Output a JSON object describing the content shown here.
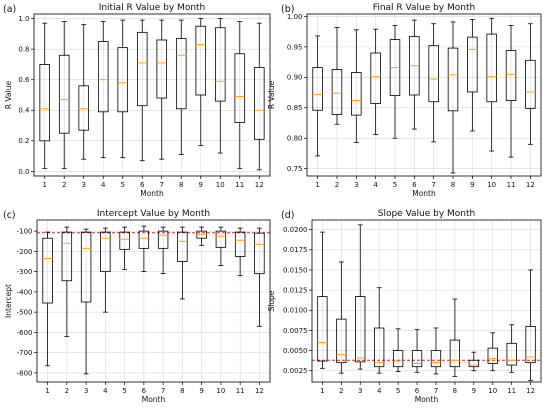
{
  "chart_data": [
    {
      "type": "box",
      "panel_label": "(a)",
      "title": "Initial R Value by Month",
      "xlabel": "Month",
      "ylabel": "R Value",
      "ylim": [
        -0.03,
        1.03
      ],
      "yticks": [
        "0.0",
        "0.2",
        "0.4",
        "0.6",
        "0.8",
        "1.0"
      ],
      "ytick_values": [
        0,
        0.2,
        0.4,
        0.6,
        0.8,
        1.0
      ],
      "categories": [
        "1",
        "2",
        "3",
        "4",
        "5",
        "6",
        "7",
        "8",
        "9",
        "10",
        "11",
        "12"
      ],
      "grid": true,
      "colors": {
        "box": "#000000",
        "median": "#ffa500",
        "grid": "#d9d9d9"
      },
      "boxes": [
        {
          "min": 0.02,
          "q1": 0.2,
          "median": 0.41,
          "q3": 0.7,
          "max": 0.97
        },
        {
          "min": 0.02,
          "q1": 0.25,
          "median": 0.47,
          "q3": 0.76,
          "max": 0.98
        },
        {
          "min": 0.08,
          "q1": 0.27,
          "median": 0.41,
          "q3": 0.56,
          "max": 0.96
        },
        {
          "min": 0.09,
          "q1": 0.39,
          "median": 0.6,
          "q3": 0.85,
          "max": 0.98
        },
        {
          "min": 0.09,
          "q1": 0.39,
          "median": 0.58,
          "q3": 0.81,
          "max": 0.99
        },
        {
          "min": 0.07,
          "q1": 0.43,
          "median": 0.71,
          "q3": 0.91,
          "max": 0.99
        },
        {
          "min": 0.08,
          "q1": 0.48,
          "median": 0.71,
          "q3": 0.86,
          "max": 0.99
        },
        {
          "min": 0.11,
          "q1": 0.41,
          "median": 0.76,
          "q3": 0.87,
          "max": 0.99
        },
        {
          "min": 0.17,
          "q1": 0.5,
          "median": 0.83,
          "q3": 0.95,
          "max": 1.0
        },
        {
          "min": 0.12,
          "q1": 0.46,
          "median": 0.59,
          "q3": 0.94,
          "max": 1.0
        },
        {
          "min": 0.02,
          "q1": 0.32,
          "median": 0.49,
          "q3": 0.77,
          "max": 0.98
        },
        {
          "min": 0.01,
          "q1": 0.21,
          "median": 0.4,
          "q3": 0.68,
          "max": 0.97
        }
      ],
      "hline": null
    },
    {
      "type": "box",
      "panel_label": "(b)",
      "title": "Final R Value by Month",
      "xlabel": "Month",
      "ylabel": "R Value",
      "ylim": [
        0.738,
        1.004
      ],
      "yticks": [
        "0.75",
        "0.80",
        "0.85",
        "0.90",
        "0.95",
        "1.00"
      ],
      "ytick_values": [
        0.75,
        0.8,
        0.85,
        0.9,
        0.95,
        1.0
      ],
      "categories": [
        "1",
        "2",
        "3",
        "4",
        "5",
        "6",
        "7",
        "8",
        "9",
        "10",
        "11",
        "12"
      ],
      "grid": true,
      "colors": {
        "box": "#000000",
        "median": "#ffa500",
        "grid": "#d9d9d9"
      },
      "boxes": [
        {
          "min": 0.771,
          "q1": 0.846,
          "median": 0.872,
          "q3": 0.916,
          "max": 0.968
        },
        {
          "min": 0.823,
          "q1": 0.839,
          "median": 0.874,
          "q3": 0.913,
          "max": 0.982
        },
        {
          "min": 0.793,
          "q1": 0.838,
          "median": 0.862,
          "q3": 0.908,
          "max": 0.978
        },
        {
          "min": 0.806,
          "q1": 0.857,
          "median": 0.901,
          "q3": 0.94,
          "max": 0.979
        },
        {
          "min": 0.8,
          "q1": 0.87,
          "median": 0.916,
          "q3": 0.962,
          "max": 0.985
        },
        {
          "min": 0.815,
          "q1": 0.871,
          "median": 0.919,
          "q3": 0.967,
          "max": 0.994
        },
        {
          "min": 0.794,
          "q1": 0.86,
          "median": 0.897,
          "q3": 0.952,
          "max": 0.988
        },
        {
          "min": 0.743,
          "q1": 0.845,
          "median": 0.904,
          "q3": 0.948,
          "max": 0.991
        },
        {
          "min": 0.812,
          "q1": 0.876,
          "median": 0.946,
          "q3": 0.966,
          "max": 0.995
        },
        {
          "min": 0.779,
          "q1": 0.86,
          "median": 0.901,
          "q3": 0.971,
          "max": 0.997
        },
        {
          "min": 0.769,
          "q1": 0.862,
          "median": 0.905,
          "q3": 0.944,
          "max": 0.985
        },
        {
          "min": 0.79,
          "q1": 0.849,
          "median": 0.876,
          "q3": 0.928,
          "max": 0.988
        }
      ],
      "hline": null
    },
    {
      "type": "box",
      "panel_label": "(c)",
      "title": "Intercept Value by Month",
      "xlabel": "Month",
      "ylabel": "Intercept",
      "ylim": [
        -845,
        -45
      ],
      "yticks": [
        "-800",
        "-700",
        "-600",
        "-500",
        "-400",
        "-300",
        "-200",
        "-100"
      ],
      "ytick_values": [
        -800,
        -700,
        -600,
        -500,
        -400,
        -300,
        -200,
        -100
      ],
      "categories": [
        "1",
        "2",
        "3",
        "4",
        "5",
        "6",
        "7",
        "8",
        "9",
        "10",
        "11",
        "12"
      ],
      "grid": true,
      "colors": {
        "box": "#000000",
        "median": "#ffa500",
        "grid": "#d9d9d9",
        "hline": "#d62728"
      },
      "boxes": [
        {
          "min": -765,
          "q1": -455,
          "median": -235,
          "q3": -135,
          "max": -105
        },
        {
          "min": -620,
          "q1": -345,
          "median": -160,
          "q3": -105,
          "max": -80
        },
        {
          "min": -805,
          "q1": -450,
          "median": -185,
          "q3": -105,
          "max": -90
        },
        {
          "min": -500,
          "q1": -300,
          "median": -135,
          "q3": -105,
          "max": -85
        },
        {
          "min": -290,
          "q1": -190,
          "median": -140,
          "q3": -105,
          "max": -80
        },
        {
          "min": -300,
          "q1": -185,
          "median": -135,
          "q3": -100,
          "max": -75
        },
        {
          "min": -310,
          "q1": -185,
          "median": -120,
          "q3": -100,
          "max": -80
        },
        {
          "min": -435,
          "q1": -250,
          "median": -150,
          "q3": -105,
          "max": -80
        },
        {
          "min": -170,
          "q1": -135,
          "median": -115,
          "q3": -100,
          "max": -80
        },
        {
          "min": -270,
          "q1": -180,
          "median": -125,
          "q3": -100,
          "max": -80
        },
        {
          "min": -320,
          "q1": -225,
          "median": -145,
          "q3": -105,
          "max": -85
        },
        {
          "min": -570,
          "q1": -310,
          "median": -165,
          "q3": -110,
          "max": -85
        }
      ],
      "hline": -108
    },
    {
      "type": "box",
      "panel_label": "(d)",
      "title": "Slope Value by Month",
      "xlabel": "Month",
      "ylabel": "Slope",
      "ylim": [
        0.0011,
        0.0212
      ],
      "yticks": [
        "0.0025",
        "0.0050",
        "0.0075",
        "0.0100",
        "0.0125",
        "0.0150",
        "0.0175",
        "0.0200"
      ],
      "ytick_values": [
        0.0025,
        0.005,
        0.0075,
        0.01,
        0.0125,
        0.015,
        0.0175,
        0.02
      ],
      "categories": [
        "1",
        "2",
        "3",
        "4",
        "5",
        "6",
        "7",
        "8",
        "9",
        "10",
        "11",
        "12"
      ],
      "grid": true,
      "colors": {
        "box": "#000000",
        "median": "#ffa500",
        "grid": "#d9d9d9",
        "hline": "#d62728"
      },
      "boxes": [
        {
          "min": 0.0028,
          "q1": 0.0037,
          "median": 0.006,
          "q3": 0.0117,
          "max": 0.0197
        },
        {
          "min": 0.0022,
          "q1": 0.0035,
          "median": 0.0045,
          "q3": 0.0089,
          "max": 0.016
        },
        {
          "min": 0.0027,
          "q1": 0.0036,
          "median": 0.0041,
          "q3": 0.0117,
          "max": 0.0206
        },
        {
          "min": 0.0022,
          "q1": 0.003,
          "median": 0.0035,
          "q3": 0.0078,
          "max": 0.0128
        },
        {
          "min": 0.0024,
          "q1": 0.003,
          "median": 0.0037,
          "q3": 0.005,
          "max": 0.0077
        },
        {
          "min": 0.0023,
          "q1": 0.003,
          "median": 0.0034,
          "q3": 0.005,
          "max": 0.0076
        },
        {
          "min": 0.0021,
          "q1": 0.003,
          "median": 0.0035,
          "q3": 0.005,
          "max": 0.0078
        },
        {
          "min": 0.0018,
          "q1": 0.003,
          "median": 0.0038,
          "q3": 0.0063,
          "max": 0.0114
        },
        {
          "min": 0.0025,
          "q1": 0.003,
          "median": 0.0032,
          "q3": 0.0038,
          "max": 0.0048
        },
        {
          "min": 0.0025,
          "q1": 0.0034,
          "median": 0.004,
          "q3": 0.0053,
          "max": 0.0072
        },
        {
          "min": 0.0023,
          "q1": 0.0032,
          "median": 0.0038,
          "q3": 0.0059,
          "max": 0.0082
        },
        {
          "min": 0.0013,
          "q1": 0.0035,
          "median": 0.0042,
          "q3": 0.008,
          "max": 0.015
        }
      ],
      "hline": 0.0038
    }
  ]
}
